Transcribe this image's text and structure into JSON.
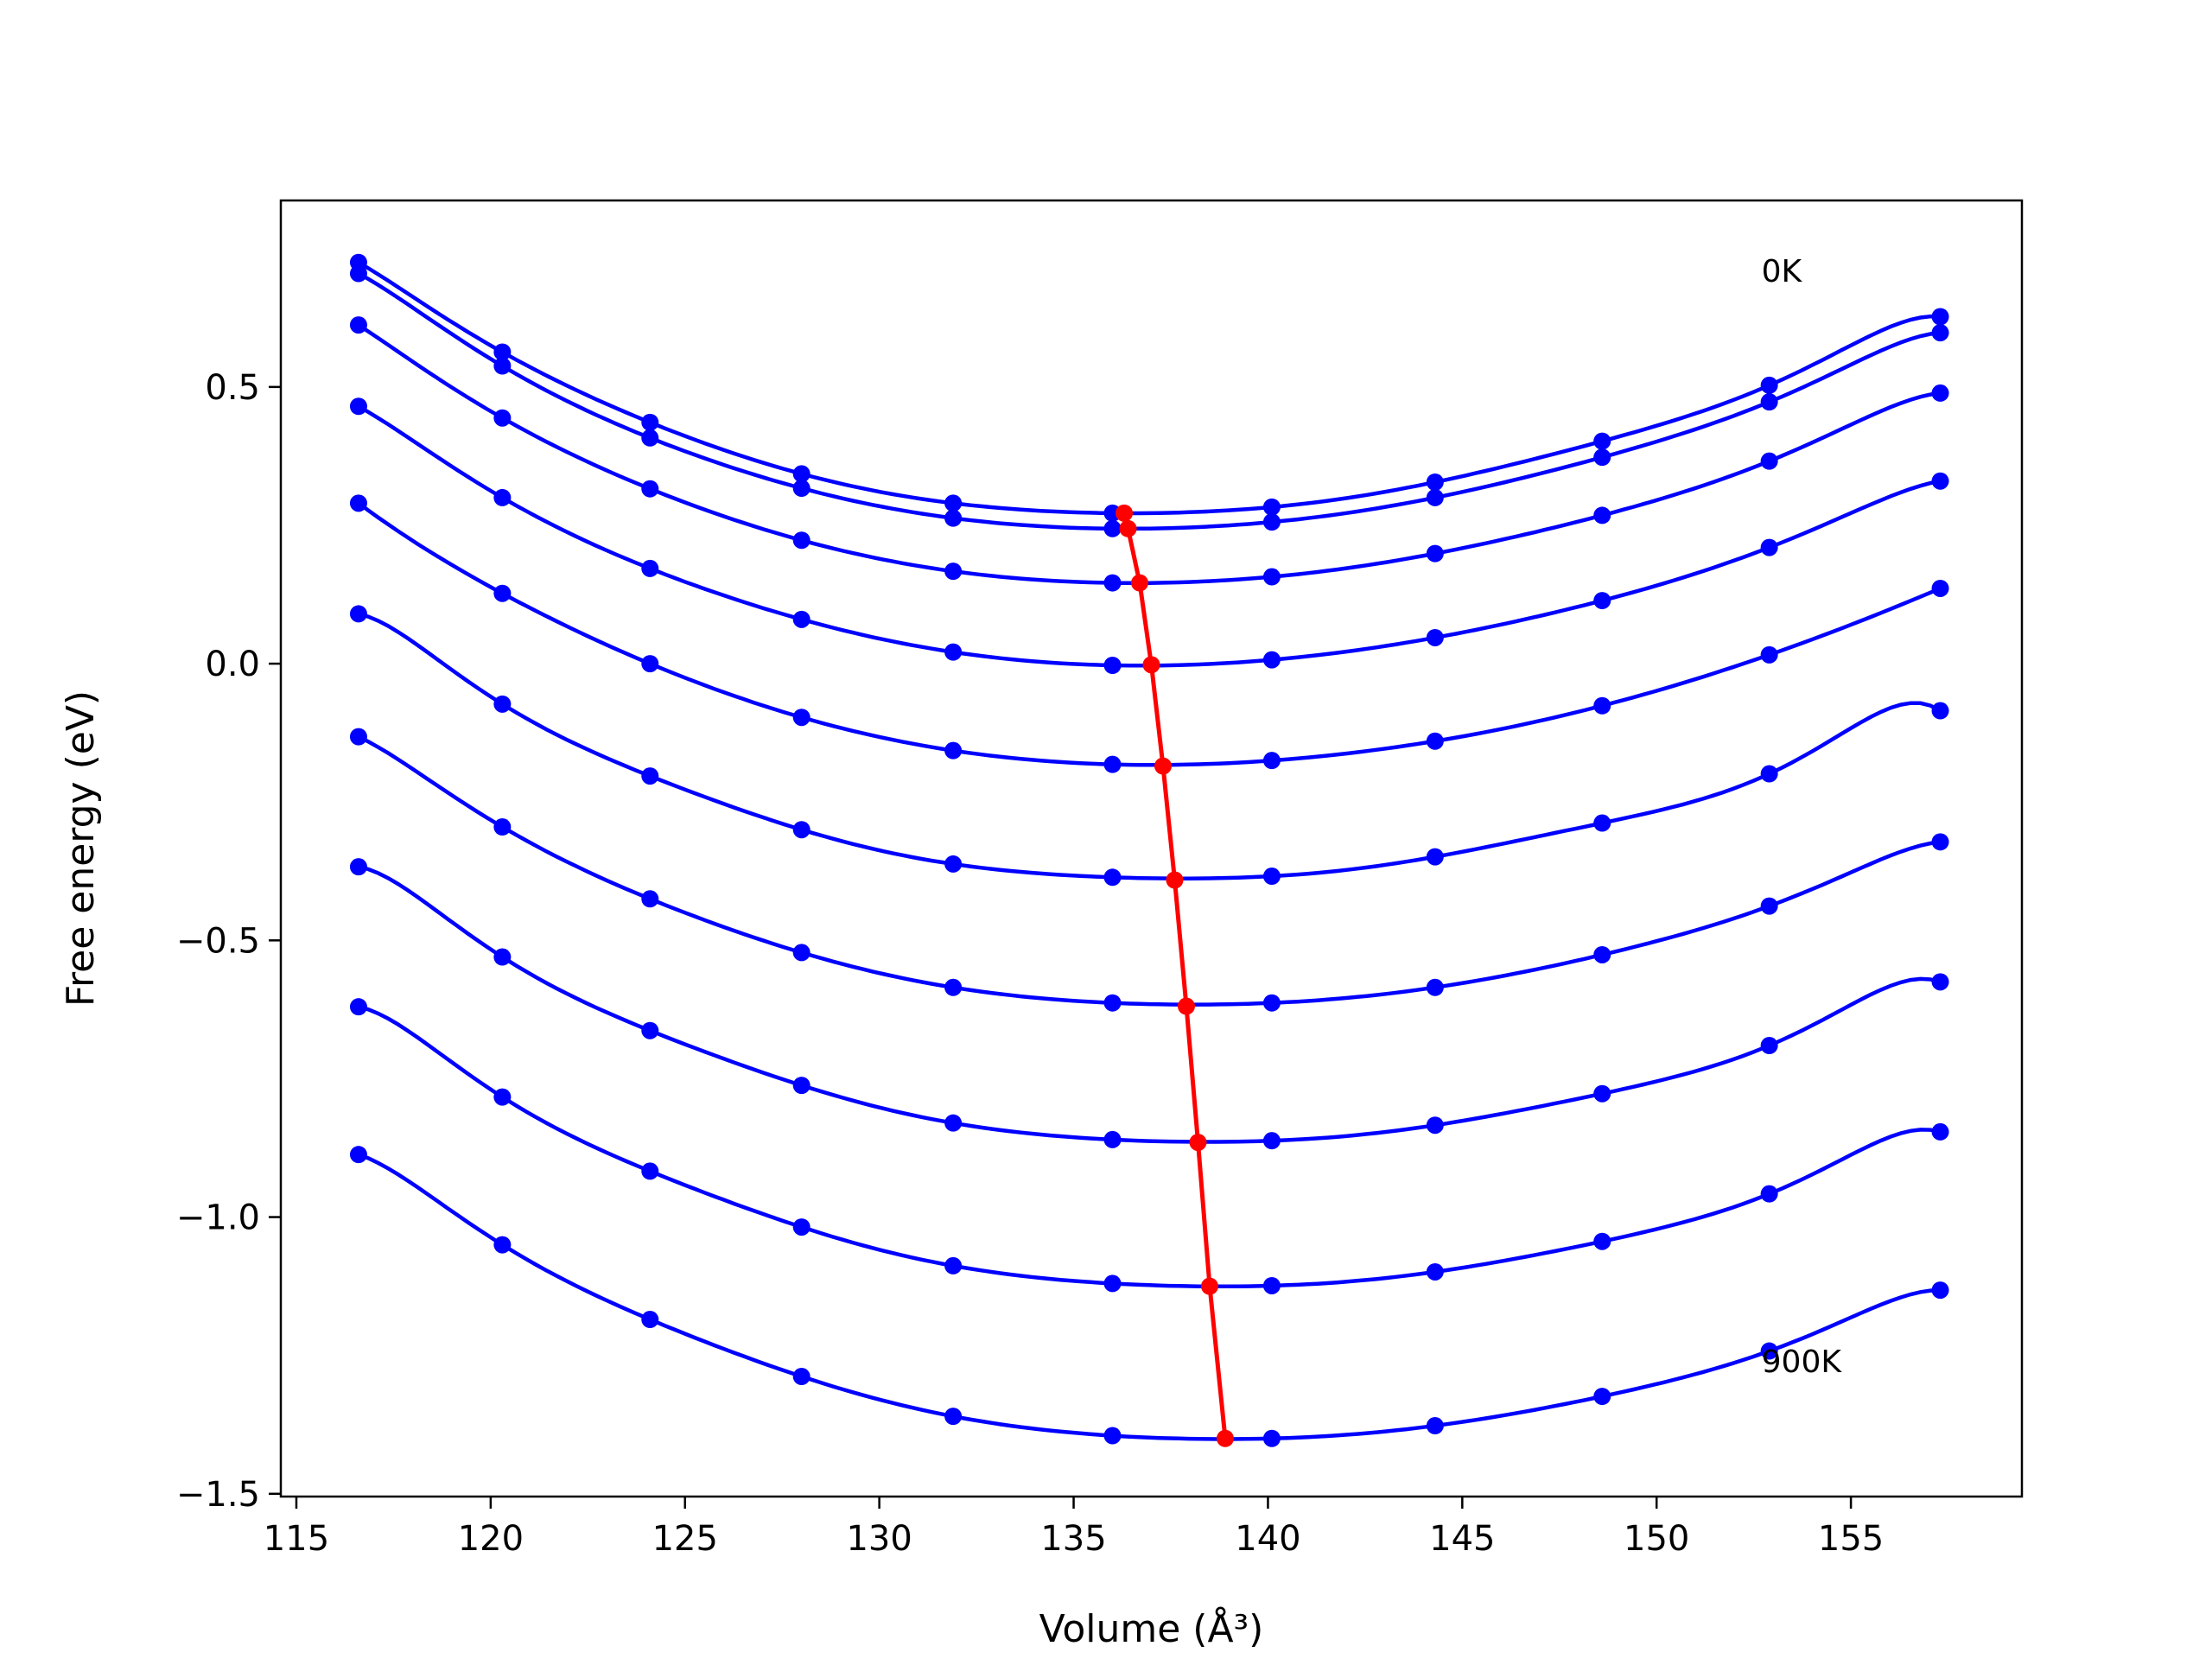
{
  "chart_data": {
    "type": "line",
    "title": "",
    "xlabel": "Volume (Å³)",
    "ylabel": "Free energy (eV)",
    "xlim": [
      114.6,
      159.4
    ],
    "ylim": [
      -1.505,
      0.837
    ],
    "xticks": [
      {
        "value": 115,
        "label": "115"
      },
      {
        "value": 120,
        "label": "120"
      },
      {
        "value": 125,
        "label": "125"
      },
      {
        "value": 130,
        "label": "130"
      },
      {
        "value": 135,
        "label": "135"
      },
      {
        "value": 140,
        "label": "140"
      },
      {
        "value": 145,
        "label": "145"
      },
      {
        "value": 150,
        "label": "150"
      },
      {
        "value": 155,
        "label": "155"
      }
    ],
    "yticks": [
      {
        "value": 0.5,
        "label": "0.5"
      },
      {
        "value": 0.0,
        "label": "0.0"
      },
      {
        "value": -0.5,
        "label": "−0.5"
      },
      {
        "value": -1.0,
        "label": "−1.0"
      },
      {
        "value": -1.5,
        "label": "−1.5"
      }
    ],
    "grid": false,
    "curve_color": "#0000ff",
    "minimum_color": "#ff0000",
    "x": [
      116.6,
      120.3,
      124.1,
      128.0,
      131.9,
      136.0,
      140.1,
      144.3,
      148.6,
      152.9,
      157.3
    ],
    "series": [
      {
        "values": [
          0.725,
          0.563,
          0.436,
          0.343,
          0.29,
          0.272,
          0.283,
          0.328,
          0.402,
          0.503,
          0.627
        ]
      },
      {
        "values": [
          0.705,
          0.538,
          0.408,
          0.317,
          0.263,
          0.244,
          0.256,
          0.3,
          0.373,
          0.473,
          0.598
        ]
      },
      {
        "values": [
          0.612,
          0.444,
          0.316,
          0.223,
          0.167,
          0.146,
          0.157,
          0.199,
          0.268,
          0.366,
          0.489
        ]
      },
      {
        "values": [
          0.465,
          0.3,
          0.172,
          0.08,
          0.021,
          -0.003,
          0.007,
          0.047,
          0.114,
          0.21,
          0.33
        ]
      },
      {
        "values": [
          0.09,
          -0.073,
          -0.203,
          -0.3,
          -0.362,
          -0.386,
          -0.384,
          -0.349,
          -0.288,
          -0.199,
          -0.085
        ]
      },
      {
        "values": [
          0.29,
          0.127,
          0.0,
          -0.097,
          -0.157,
          -0.182,
          -0.175,
          -0.14,
          -0.076,
          0.016,
          0.136
        ]
      },
      {
        "values": [
          -0.132,
          -0.295,
          -0.425,
          -0.522,
          -0.585,
          -0.613,
          -0.613,
          -0.585,
          -0.526,
          -0.438,
          -0.322
        ]
      },
      {
        "values": [
          -0.367,
          -0.53,
          -0.663,
          -0.762,
          -0.83,
          -0.86,
          -0.862,
          -0.834,
          -0.777,
          -0.69,
          -0.575
        ]
      },
      {
        "values": [
          -0.62,
          -0.783,
          -0.917,
          -1.018,
          -1.088,
          -1.12,
          -1.124,
          -1.099,
          -1.044,
          -0.958,
          -0.846
        ]
      },
      {
        "values": [
          -0.887,
          -1.05,
          -1.185,
          -1.288,
          -1.36,
          -1.395,
          -1.4,
          -1.377,
          -1.324,
          -1.242,
          -1.132
        ]
      }
    ],
    "minimum_line": {
      "x": [
        136.3,
        136.4,
        136.7,
        137.0,
        137.3,
        137.6,
        137.9,
        138.2,
        138.5,
        138.9
      ],
      "y": [
        0.272,
        0.244,
        0.146,
        -0.002,
        -0.185,
        -0.391,
        -0.619,
        -0.865,
        -1.125,
        -1.4
      ]
    },
    "annotations": [
      {
        "text": "0K",
        "x": 152.7,
        "y": 0.69
      },
      {
        "text": "900K",
        "x": 152.7,
        "y": -1.28
      }
    ]
  }
}
